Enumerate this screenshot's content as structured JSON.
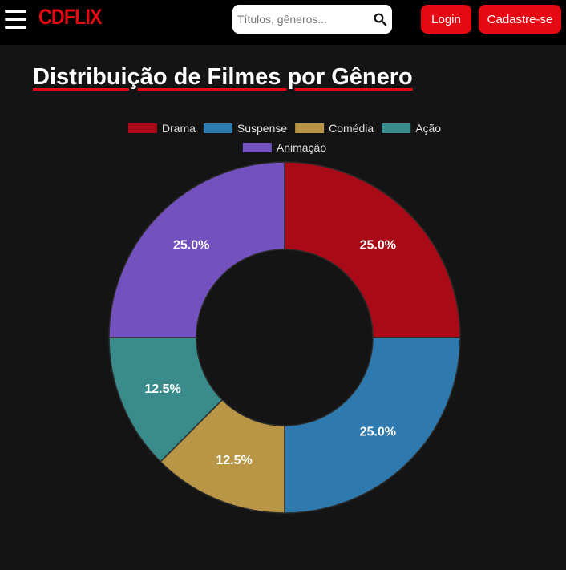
{
  "header": {
    "logo": "CDFLIX",
    "search_placeholder": "Títulos, gêneros...",
    "login_label": "Login",
    "signup_label": "Cadastre-se",
    "icons": {
      "menu": "hamburger-menu-icon",
      "search": "search-icon"
    }
  },
  "main": {
    "title": "Distribuição de Filmes por Gênero"
  },
  "colors": {
    "brand": "#e50914",
    "background": "#141414",
    "navbar": "#000000"
  },
  "chart_data": {
    "type": "pie",
    "variant": "doughnut",
    "legend": "top",
    "categories": [
      "Drama",
      "Suspense",
      "Comédia",
      "Ação",
      "Animação"
    ],
    "values": [
      25.0,
      25.0,
      12.5,
      12.5,
      25.0
    ],
    "labels": [
      "25.0%",
      "25.0%",
      "12.5%",
      "12.5%",
      "25.0%"
    ],
    "colors": [
      "#a80b17",
      "#2e79ad",
      "#b99645",
      "#3a8b8b",
      "#7351be"
    ]
  }
}
